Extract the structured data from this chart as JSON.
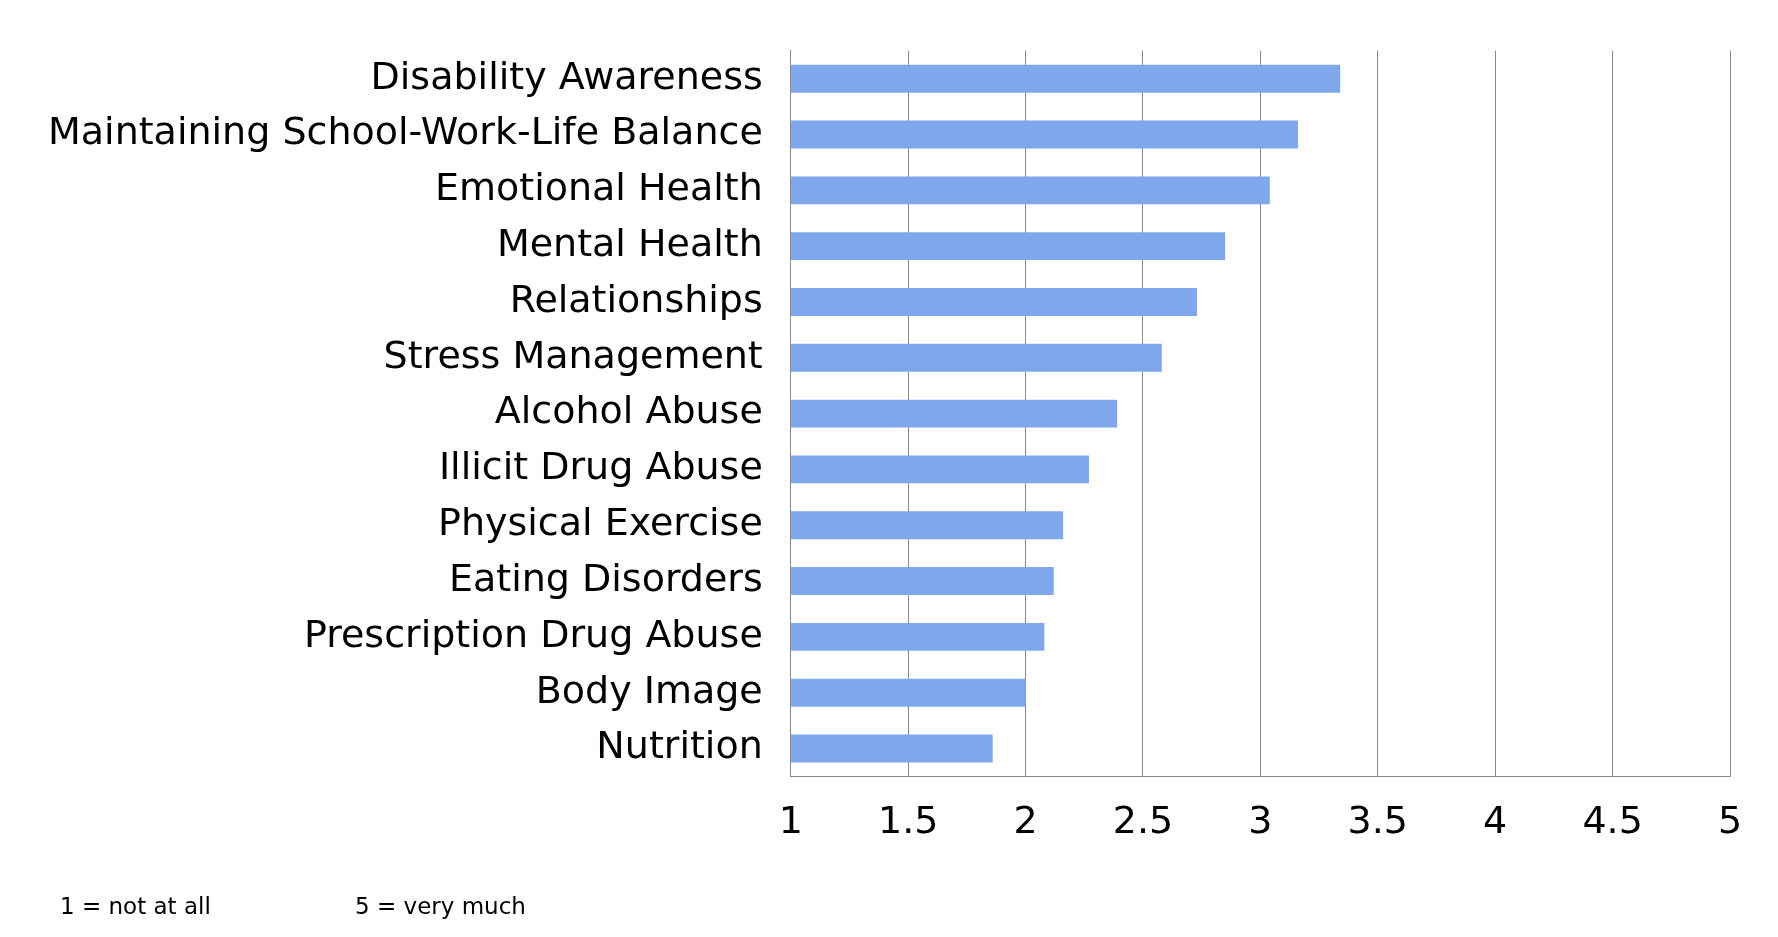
{
  "chart_data": {
    "type": "bar",
    "orientation": "horizontal",
    "categories": [
      "Disability Awareness",
      "Maintaining School-Work-Life Balance",
      "Emotional Health",
      "Mental Health",
      "Relationships",
      "Stress Management",
      "Alcohol Abuse",
      "Illicit Drug Abuse",
      "Physical Exercise",
      "Eating Disorders",
      "Prescription Drug Abuse",
      "Body Image",
      "Nutrition"
    ],
    "values": [
      3.34,
      3.16,
      3.04,
      2.85,
      2.73,
      2.58,
      2.39,
      2.27,
      2.16,
      2.12,
      2.08,
      2.0,
      1.86
    ],
    "color": "#7fa8ec",
    "xlim": [
      1,
      5
    ],
    "xticks": [
      1,
      1.5,
      2,
      2.5,
      3,
      3.5,
      4,
      4.5,
      5
    ],
    "grid": "x",
    "annotations": [
      "1 = not at all",
      "5 = very much"
    ]
  }
}
